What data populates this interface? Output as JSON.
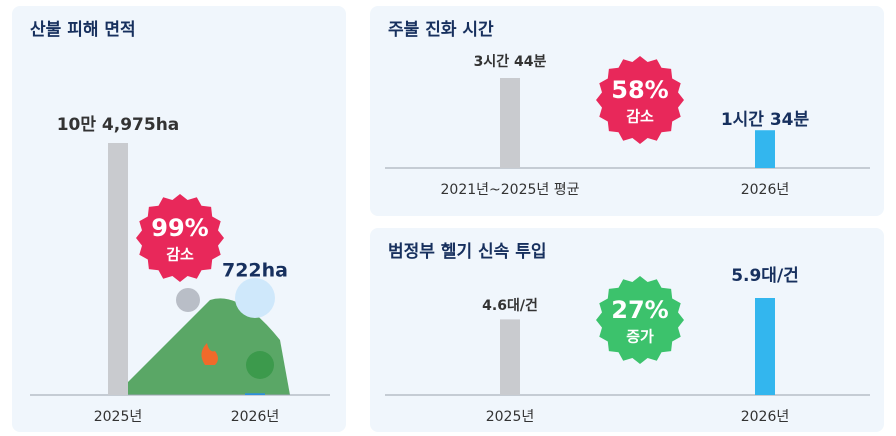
{
  "chart_data": [
    {
      "type": "bar",
      "title": "산불 피해 면적",
      "categories": [
        "2025년",
        "2026년"
      ],
      "values": [
        104975,
        722
      ],
      "value_labels": [
        "10만 4,975ha",
        "722ha"
      ],
      "colors": [
        "#c9cbcf",
        "#2f8fdc"
      ],
      "badge": {
        "value": "99%",
        "label": "감소",
        "color": "#e8285a"
      }
    },
    {
      "type": "bar",
      "title": "주불 진화 시간",
      "categories": [
        "2021년~2025년 평균",
        "2026년"
      ],
      "values": [
        224,
        94
      ],
      "value_labels": [
        "3시간 44분",
        "1시간 34분"
      ],
      "colors": [
        "#c9cbcf",
        "#33b6ee"
      ],
      "badge": {
        "value": "58%",
        "label": "감소",
        "color": "#e8285a"
      }
    },
    {
      "type": "bar",
      "title": "범정부 헬기 신속 투입",
      "categories": [
        "2025년",
        "2026년"
      ],
      "values": [
        4.6,
        5.9
      ],
      "value_labels": [
        "4.6대/건",
        "5.9대/건"
      ],
      "colors": [
        "#c9cbcf",
        "#33b6ee"
      ],
      "badge": {
        "value": "27%",
        "label": "증가",
        "color": "#3cc26c"
      }
    }
  ]
}
